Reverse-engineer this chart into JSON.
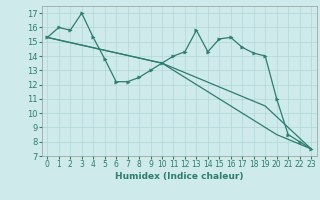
{
  "xlabel": "Humidex (Indice chaleur)",
  "bg_color": "#ceeaea",
  "line_color": "#2e7d6e",
  "grid_color": "#b0d8d8",
  "xlim": [
    -0.5,
    23.5
  ],
  "ylim": [
    7,
    17.5
  ],
  "yticks": [
    7,
    8,
    9,
    10,
    11,
    12,
    13,
    14,
    15,
    16,
    17
  ],
  "xticks": [
    0,
    1,
    2,
    3,
    4,
    5,
    6,
    7,
    8,
    9,
    10,
    11,
    12,
    13,
    14,
    15,
    16,
    17,
    18,
    19,
    20,
    21,
    22,
    23
  ],
  "series1_x": [
    0,
    1,
    2,
    3,
    4,
    5,
    6,
    7,
    8,
    9,
    10,
    11,
    12,
    13,
    14,
    15,
    16,
    17,
    18,
    19,
    20,
    21,
    22,
    23
  ],
  "series1_y": [
    15.3,
    16.0,
    15.8,
    17.0,
    15.3,
    13.8,
    12.2,
    12.2,
    12.5,
    13.0,
    13.5,
    14.0,
    14.3,
    15.8,
    14.3,
    15.2,
    15.3,
    14.6,
    14.2,
    14.0,
    11.0,
    8.5,
    8.0,
    7.5
  ],
  "series2_x": [
    0,
    10,
    19,
    23
  ],
  "series2_y": [
    15.3,
    13.5,
    10.5,
    7.5
  ],
  "series3_x": [
    0,
    10,
    20,
    23
  ],
  "series3_y": [
    15.3,
    13.5,
    8.5,
    7.5
  ]
}
